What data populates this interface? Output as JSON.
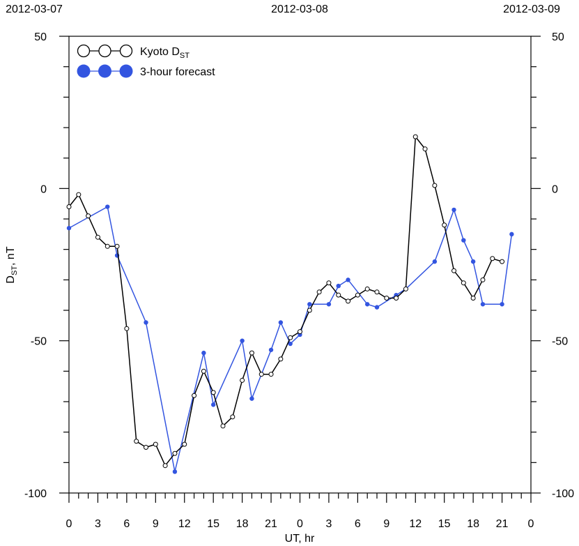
{
  "chart_data": {
    "type": "line",
    "top_dates": [
      "2012-03-07",
      "2012-03-08",
      "2012-03-09"
    ],
    "xlabel": "UT, hr",
    "ylabel": "DST, nT",
    "ylabel_main": "D",
    "ylabel_sub": "ST",
    "ylabel_rest": ", nT",
    "ylim": [
      -100,
      50
    ],
    "xlim": [
      0,
      48
    ],
    "y_ticks": [
      -100,
      -50,
      0,
      50
    ],
    "y_tick_labels": [
      "-100",
      "-50",
      "0",
      "50"
    ],
    "x_tick_labels": [
      "0",
      "3",
      "6",
      "9",
      "12",
      "15",
      "18",
      "21",
      "0",
      "3",
      "6",
      "9",
      "12",
      "15",
      "18",
      "21",
      "0"
    ],
    "grid": false,
    "legend_position": "top-left",
    "series": [
      {
        "name": "Kyoto DST",
        "name_main": "Kyoto D",
        "name_sub": "ST",
        "color": "#000000",
        "marker": "open-circle",
        "x": [
          0,
          1,
          2,
          3,
          4,
          5,
          6,
          7,
          8,
          9,
          10,
          11,
          12,
          13,
          14,
          15,
          16,
          17,
          18,
          19,
          20,
          21,
          22,
          23,
          24,
          25,
          26,
          27,
          28,
          29,
          30,
          31,
          32,
          33,
          34,
          35,
          36,
          37,
          38,
          39,
          40,
          41,
          42,
          43,
          44,
          45
        ],
        "y": [
          -6,
          -2,
          -9,
          -16,
          -19,
          -19,
          -46,
          -83,
          -85,
          -84,
          -91,
          -87,
          -84,
          -68,
          -60,
          -67,
          -78,
          -75,
          -63,
          -54,
          -61,
          -61,
          -56,
          -49,
          -47,
          -40,
          -34,
          -31,
          -35,
          -37,
          -35,
          -33,
          -34,
          -36,
          -36,
          -33,
          17,
          13,
          1,
          -12,
          -27,
          -31,
          -36,
          -30,
          -23,
          -24
        ]
      },
      {
        "name": "3-hour forecast",
        "color": "#3355e0",
        "marker": "filled-circle",
        "x": [
          0,
          4,
          5,
          8,
          11,
          14,
          15,
          18,
          19,
          21,
          22,
          23,
          24,
          25,
          27,
          28,
          29,
          31,
          32,
          34,
          35,
          38,
          40,
          41,
          42,
          43,
          45,
          46
        ],
        "y": [
          -13,
          -6,
          -22,
          -44,
          -93,
          -54,
          -71,
          -50,
          -69,
          -53,
          -44,
          -51,
          -48,
          -38,
          -38,
          -32,
          -30,
          -38,
          -39,
          -35,
          -33,
          -24,
          -7,
          -17,
          -24,
          -38,
          -38,
          -15
        ]
      }
    ]
  }
}
